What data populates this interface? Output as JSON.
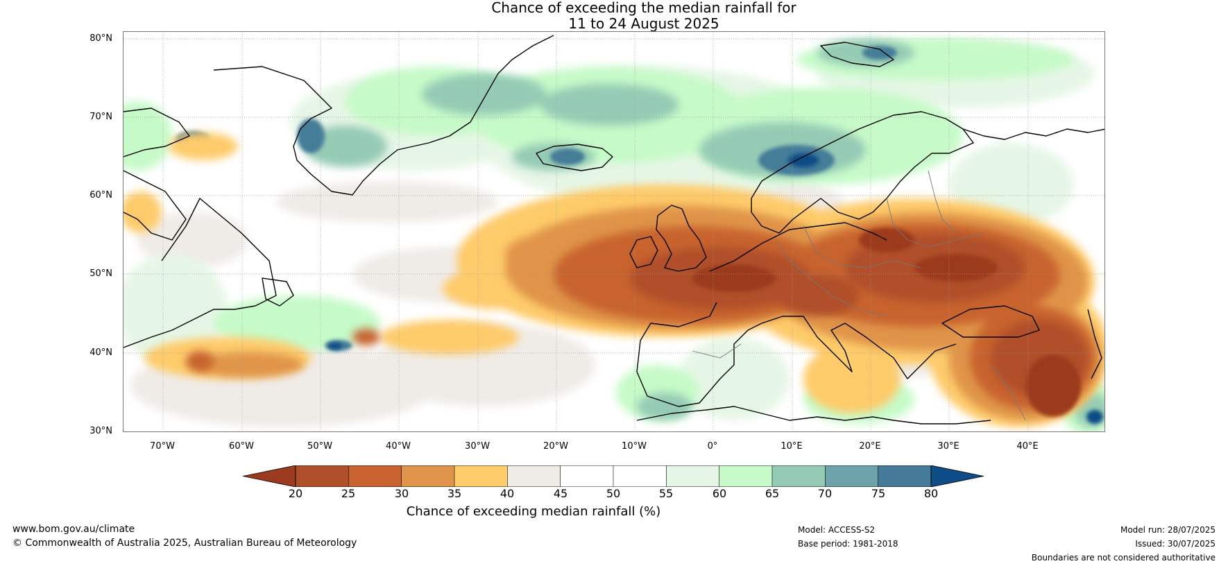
{
  "title_line1": "Chance of exceeding the median rainfall for",
  "title_line2": "11 to 24 August 2025",
  "lat_labels": [
    "80°N",
    "70°N",
    "60°N",
    "50°N",
    "40°N",
    "30°N"
  ],
  "lon_labels": [
    "70°W",
    "60°W",
    "50°W",
    "40°W",
    "30°W",
    "20°W",
    "10°W",
    "0°",
    "10°E",
    "20°E",
    "30°E",
    "40°E"
  ],
  "colorbar": {
    "title": "Chance of exceeding median rainfall (%)",
    "ticks": [
      "20",
      "25",
      "30",
      "35",
      "40",
      "45",
      "50",
      "55",
      "60",
      "65",
      "70",
      "75",
      "80"
    ],
    "colors": [
      "#9c3a1f",
      "#b0502a",
      "#c8632f",
      "#e0944a",
      "#fecb6b",
      "#efebe7",
      "#ffffff",
      "#ffffff",
      "#e6f6e6",
      "#c6fac8",
      "#95cbb5",
      "#6fa3ab",
      "#457b98",
      "#0d4c86"
    ]
  },
  "footer": {
    "website": "www.bom.gov.au/climate",
    "copyright": "© Commonwealth of Australia 2025, Australian Bureau of Meteorology",
    "model": "Model: ACCESS-S2",
    "base_period": "Base period: 1981-2018",
    "model_run": "Model run: 28/07/2025",
    "issued": "Issued: 30/07/2025",
    "disclaimer": "Boundaries are not considered authoritative"
  }
}
